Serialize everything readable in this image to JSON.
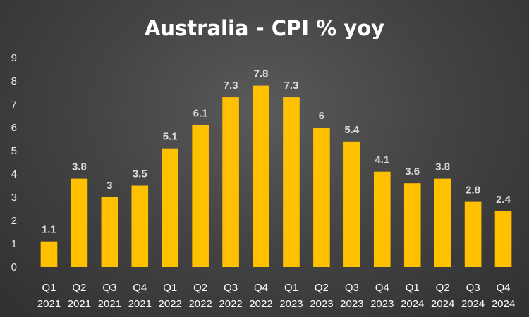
{
  "chart_data": {
    "type": "bar",
    "title": "Australia - CPI % yoy",
    "xlabel": "",
    "ylabel": "",
    "ylim": [
      0,
      9
    ],
    "yticks": [
      0,
      1,
      2,
      3,
      4,
      5,
      6,
      7,
      8,
      9
    ],
    "grid": false,
    "legend": "none",
    "bar_color": "#FFC000",
    "categories": [
      [
        "Q1",
        "2021"
      ],
      [
        "Q2",
        "2021"
      ],
      [
        "Q3",
        "2021"
      ],
      [
        "Q4",
        "2021"
      ],
      [
        "Q1",
        "2022"
      ],
      [
        "Q2",
        "2022"
      ],
      [
        "Q3",
        "2022"
      ],
      [
        "Q4",
        "2022"
      ],
      [
        "Q1",
        "2023"
      ],
      [
        "Q2",
        "2023"
      ],
      [
        "Q3",
        "2023"
      ],
      [
        "Q4",
        "2023"
      ],
      [
        "Q1",
        "2024"
      ],
      [
        "Q2",
        "2024"
      ],
      [
        "Q3",
        "2024"
      ],
      [
        "Q4",
        "2024"
      ]
    ],
    "values": [
      1.1,
      3.8,
      3,
      3.5,
      5.1,
      6.1,
      7.3,
      7.8,
      7.3,
      6,
      5.4,
      4.1,
      3.6,
      3.8,
      2.8,
      2.4
    ]
  }
}
